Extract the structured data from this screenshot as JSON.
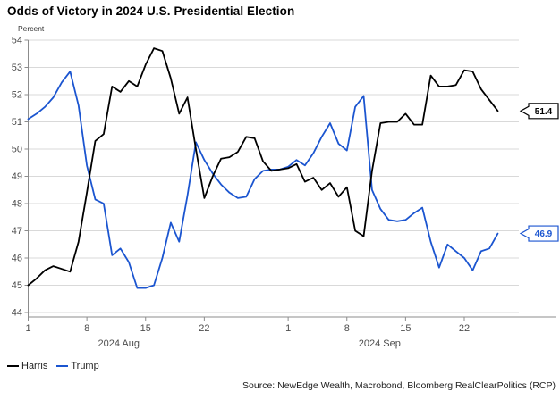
{
  "title": "Odds of Victory in 2024 U.S. Presidential Election",
  "y_axis_title": "Percent",
  "source": "Source: NewEdge Wealth, Macrobond, Bloomberg RealClearPolitics (RCP)",
  "legend": {
    "items": [
      {
        "label": "Harris",
        "color": "#000000"
      },
      {
        "label": "Trump",
        "color": "#1b55d0"
      }
    ]
  },
  "colors": {
    "harris": "#000000",
    "trump": "#1b55d0",
    "gridline": "#d9d9d9",
    "axis": "#8c8c8c",
    "tick_label": "#4d4d4d"
  },
  "end_value_labels": [
    {
      "series": "Harris",
      "value": "51.4",
      "color": "#000000"
    },
    {
      "series": "Trump",
      "value": "46.9",
      "color": "#1b55d0"
    }
  ],
  "chart_data": {
    "type": "line",
    "title": "Odds of Victory in 2024 U.S. Presidential Election",
    "xlabel": "",
    "ylabel": "Percent",
    "ylim": [
      44,
      54
    ],
    "y_ticks": [
      54,
      53,
      52,
      51,
      50,
      49,
      48,
      47,
      46,
      45,
      44
    ],
    "grid": "horizontal",
    "legend_position": "bottom-left",
    "x_start_date": "2024-08-01",
    "x_end_date": "2024-09-26",
    "x_ticks": [
      {
        "day": 0,
        "label": "1"
      },
      {
        "day": 7,
        "label": "8"
      },
      {
        "day": 14,
        "label": "15"
      },
      {
        "day": 21,
        "label": "22"
      },
      {
        "day": 31,
        "label": "1"
      },
      {
        "day": 38,
        "label": "8"
      },
      {
        "day": 45,
        "label": "15"
      },
      {
        "day": 52,
        "label": "22"
      }
    ],
    "month_labels": [
      {
        "label": "2024 Aug",
        "day": 10.8
      },
      {
        "label": "2024 Sep",
        "day": 41.9
      }
    ],
    "series": [
      {
        "name": "Trump",
        "color": "#1b55d0",
        "end_label": "46.9",
        "values": [
          51.1,
          51.3,
          51.55,
          51.9,
          52.45,
          52.85,
          51.6,
          49.4,
          48.15,
          48.0,
          46.1,
          46.35,
          45.85,
          44.9,
          44.9,
          45.0,
          46.0,
          47.3,
          46.6,
          48.3,
          50.25,
          49.6,
          49.1,
          48.7,
          48.4,
          48.2,
          48.25,
          48.9,
          49.2,
          49.25,
          49.25,
          49.35,
          49.6,
          49.4,
          49.85,
          50.45,
          50.95,
          50.2,
          49.95,
          51.55,
          51.95,
          48.5,
          47.8,
          47.4,
          47.35,
          47.4,
          47.65,
          47.85,
          46.6,
          45.65,
          46.5,
          46.25,
          46.0,
          45.55,
          46.25,
          46.35,
          46.9
        ]
      },
      {
        "name": "Harris",
        "color": "#000000",
        "end_label": "51.4",
        "values": [
          45.0,
          45.25,
          45.55,
          45.7,
          45.6,
          45.5,
          46.6,
          48.4,
          50.3,
          50.55,
          52.3,
          52.1,
          52.5,
          52.3,
          53.1,
          53.7,
          53.6,
          52.6,
          51.3,
          51.9,
          50.0,
          48.2,
          49.0,
          49.65,
          49.7,
          49.9,
          50.45,
          50.4,
          49.55,
          49.2,
          49.25,
          49.3,
          49.45,
          48.8,
          48.95,
          48.5,
          48.75,
          48.25,
          48.6,
          47.0,
          46.8,
          49.2,
          50.95,
          51.0,
          51.0,
          51.3,
          50.9,
          50.9,
          52.7,
          52.3,
          52.3,
          52.35,
          52.9,
          52.85,
          52.2,
          51.8,
          51.4
        ]
      }
    ]
  }
}
